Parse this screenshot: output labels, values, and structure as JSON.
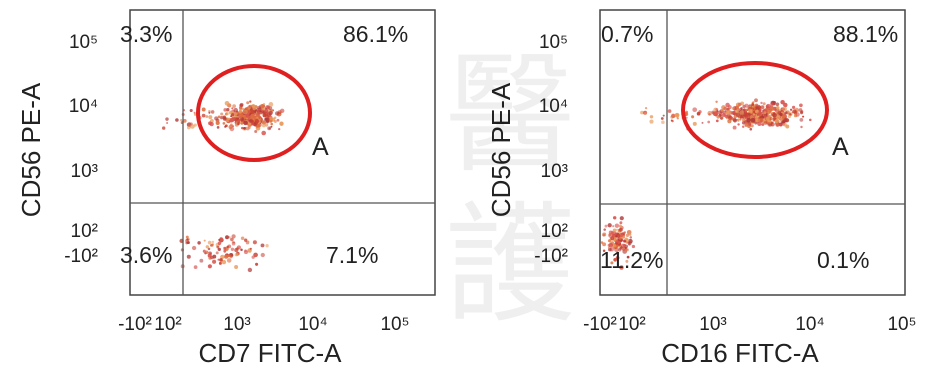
{
  "chart_data": [
    {
      "type": "scatter",
      "xlabel": "CD7 FITC-A",
      "ylabel": "CD56 PE-A",
      "x_ticks": [
        "-10²",
        "10²",
        "10³",
        "10⁴",
        "10⁵"
      ],
      "y_ticks": [
        "10⁵",
        "10⁴",
        "10³",
        "10²",
        "-10²"
      ],
      "quadrants": {
        "upper_left": "3.3%",
        "upper_right": "86.1%",
        "lower_left": "3.6%",
        "lower_right": "7.1%"
      },
      "gate": {
        "label": "A",
        "center": [
          1500,
          7000
        ]
      },
      "populations": [
        {
          "name": "",
          "center": [
            1400,
            7500
          ],
          "spread": [
            0.35,
            0.18
          ],
          "count": 340
        },
        {
          "name": "",
          "center": [
            300,
            7000
          ],
          "spread": [
            0.5,
            0.15
          ],
          "count": 40
        },
        {
          "name": "",
          "center": [
            600,
            60
          ],
          "spread": [
            0.6,
            0.25
          ],
          "count": 90
        }
      ]
    },
    {
      "type": "scatter",
      "xlabel": "CD16 FITC-A",
      "ylabel": "CD56 PE-A",
      "x_ticks": [
        "-10²",
        "10²",
        "10³",
        "10⁴",
        "10⁵"
      ],
      "y_ticks": [
        "10⁵",
        "10⁴",
        "10³",
        "10²",
        "-10²"
      ],
      "quadrants": {
        "upper_left": "0.7%",
        "upper_right": "88.1%",
        "lower_left": "11.2%",
        "lower_right": "0.1%"
      },
      "gate": {
        "label": "A",
        "center": [
          2500,
          8000
        ]
      },
      "populations": [
        {
          "name": "",
          "center": [
            2400,
            8200
          ],
          "spread": [
            0.45,
            0.17
          ],
          "count": 420
        },
        {
          "name": "",
          "center": [
            300,
            7500
          ],
          "spread": [
            0.4,
            0.14
          ],
          "count": 30
        },
        {
          "name": "",
          "center": [
            40,
            -60
          ],
          "spread": [
            0.15,
            0.25
          ],
          "count": 110
        }
      ]
    }
  ],
  "colors": {
    "dots": [
      "#d9534f",
      "#e0703f",
      "#c9402f",
      "#e89a5a",
      "#b33a3a"
    ],
    "gate": "#e02020",
    "axis": "#444444"
  }
}
